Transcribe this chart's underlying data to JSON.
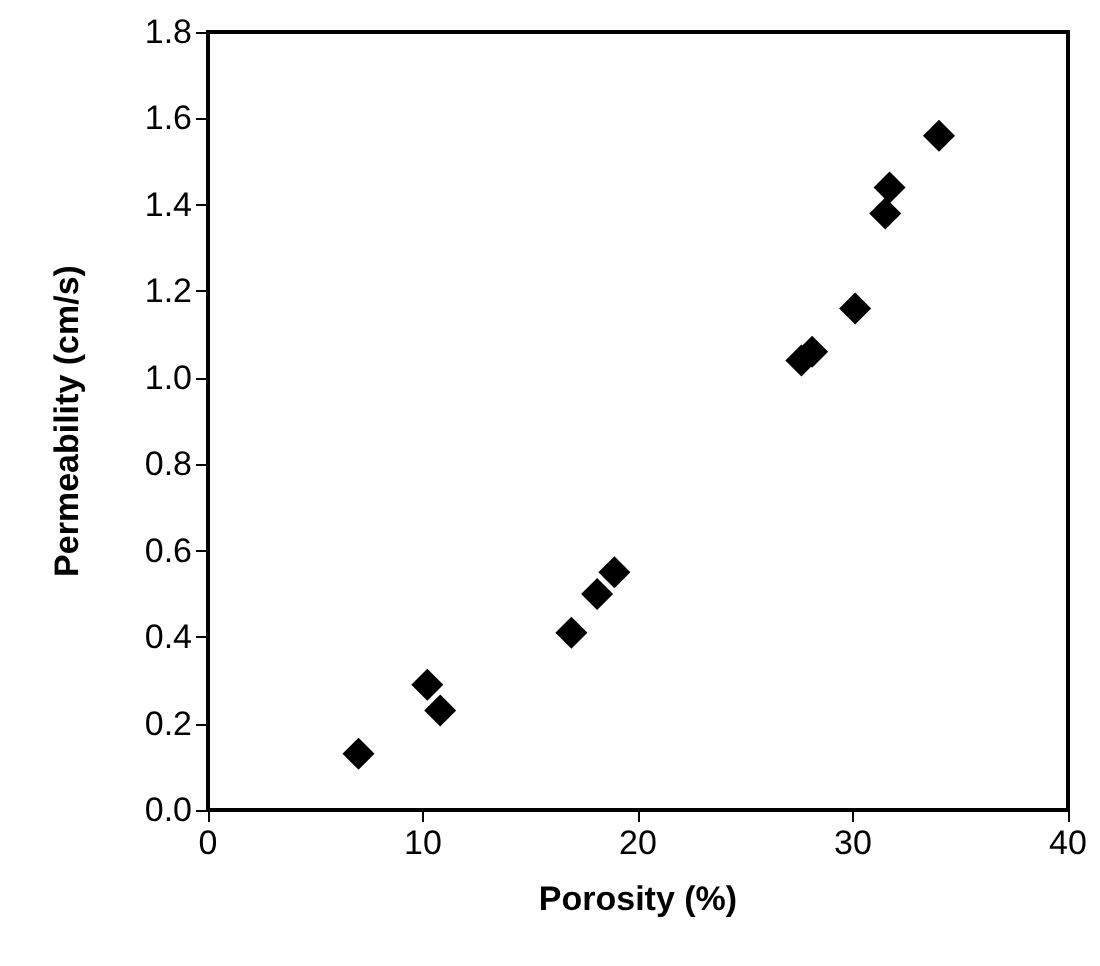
{
  "chart_data": {
    "type": "scatter",
    "xlabel": "Porosity (%)",
    "ylabel": "Permeability (cm/s)",
    "x": [
      7.0,
      10.2,
      10.8,
      16.9,
      18.1,
      18.9,
      27.6,
      28.1,
      30.1,
      31.5,
      31.7,
      34.0
    ],
    "values": [
      0.13,
      0.29,
      0.23,
      0.41,
      0.5,
      0.55,
      1.04,
      1.06,
      1.16,
      1.38,
      1.44,
      1.56
    ],
    "color": "#000000",
    "marker": "diamond",
    "xlim": [
      0,
      40
    ],
    "xticks": [
      0,
      10,
      20,
      30,
      40
    ],
    "ylim": [
      0,
      1.8
    ],
    "yticks": [
      {
        "value": 0,
        "label": "0.0"
      },
      {
        "value": 0.2,
        "label": "0.2"
      },
      {
        "value": 0.4,
        "label": "0.4"
      },
      {
        "value": 0.6,
        "label": "0.6"
      },
      {
        "value": 0.8,
        "label": "0.8"
      },
      {
        "value": 1,
        "label": "1.0"
      },
      {
        "value": 1.2,
        "label": "1.2"
      },
      {
        "value": 1.4,
        "label": "1.4"
      },
      {
        "value": 1.6,
        "label": "1.6"
      },
      {
        "value": 1.8,
        "label": "1.8"
      }
    ],
    "grid": false
  }
}
